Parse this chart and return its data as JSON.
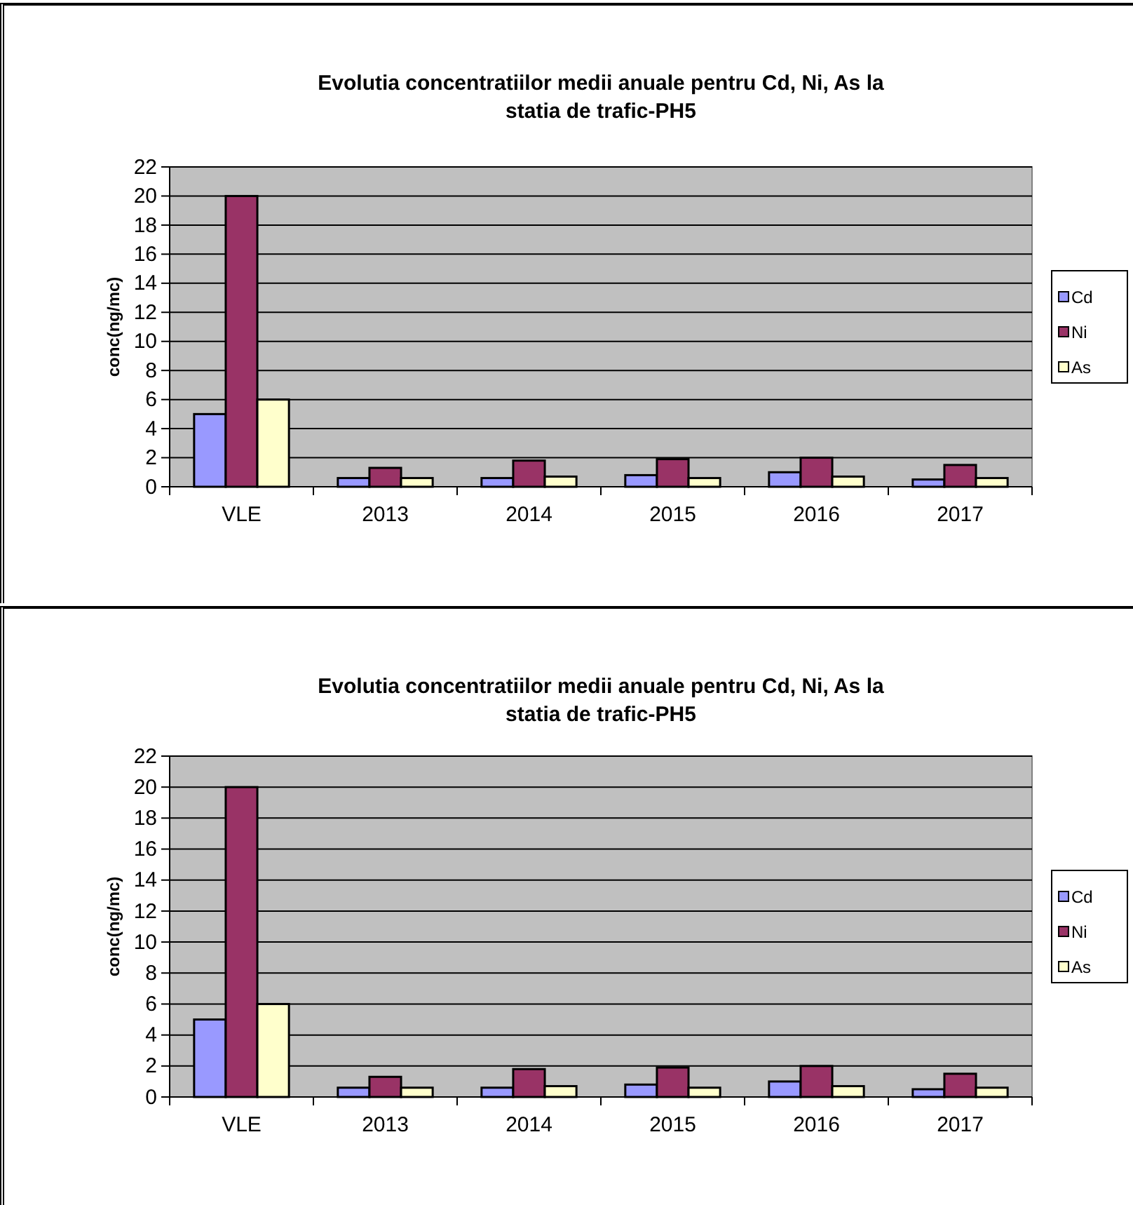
{
  "chart_data": [
    {
      "type": "bar",
      "title": "Evolutia concentratiilor medii anuale pentru Cd, Ni,  As la statia de trafic-PH5",
      "ylabel": "conc(ng/mc)",
      "categories": [
        "VLE",
        "2013",
        "2014",
        "2015",
        "2016",
        "2017"
      ],
      "series": [
        {
          "name": "Cd",
          "color": "#9999ff",
          "values": [
            5,
            0.6,
            0.6,
            0.8,
            1.0,
            0.5
          ]
        },
        {
          "name": "Ni",
          "color": "#993366",
          "values": [
            20,
            1.3,
            1.8,
            1.9,
            2.0,
            1.5
          ]
        },
        {
          "name": "As",
          "color": "#ffffcc",
          "values": [
            6,
            0.6,
            0.7,
            0.6,
            0.7,
            0.6
          ]
        }
      ],
      "ylim": [
        0,
        22
      ],
      "yticks": [
        0,
        2,
        4,
        6,
        8,
        10,
        12,
        14,
        16,
        18,
        20,
        22
      ],
      "grid": "y",
      "legend": "right"
    },
    {
      "type": "bar",
      "title": "Evolutia concentratiilor medii anuale pentru Cd, Ni,  As la statia de trafic-PH5",
      "ylabel": "conc(ng/mc)",
      "categories": [
        "VLE",
        "2013",
        "2014",
        "2015",
        "2016",
        "2017"
      ],
      "series": [
        {
          "name": "Cd",
          "color": "#9999ff",
          "values": [
            5,
            0.6,
            0.6,
            0.8,
            1.0,
            0.5
          ]
        },
        {
          "name": "Ni",
          "color": "#993366",
          "values": [
            20,
            1.3,
            1.8,
            1.9,
            2.0,
            1.5
          ]
        },
        {
          "name": "As",
          "color": "#ffffcc",
          "values": [
            6,
            0.6,
            0.7,
            0.6,
            0.7,
            0.6
          ]
        }
      ],
      "ylim": [
        0,
        22
      ],
      "yticks": [
        0,
        2,
        4,
        6,
        8,
        10,
        12,
        14,
        16,
        18,
        20,
        22
      ],
      "grid": "y",
      "legend": "right"
    }
  ]
}
